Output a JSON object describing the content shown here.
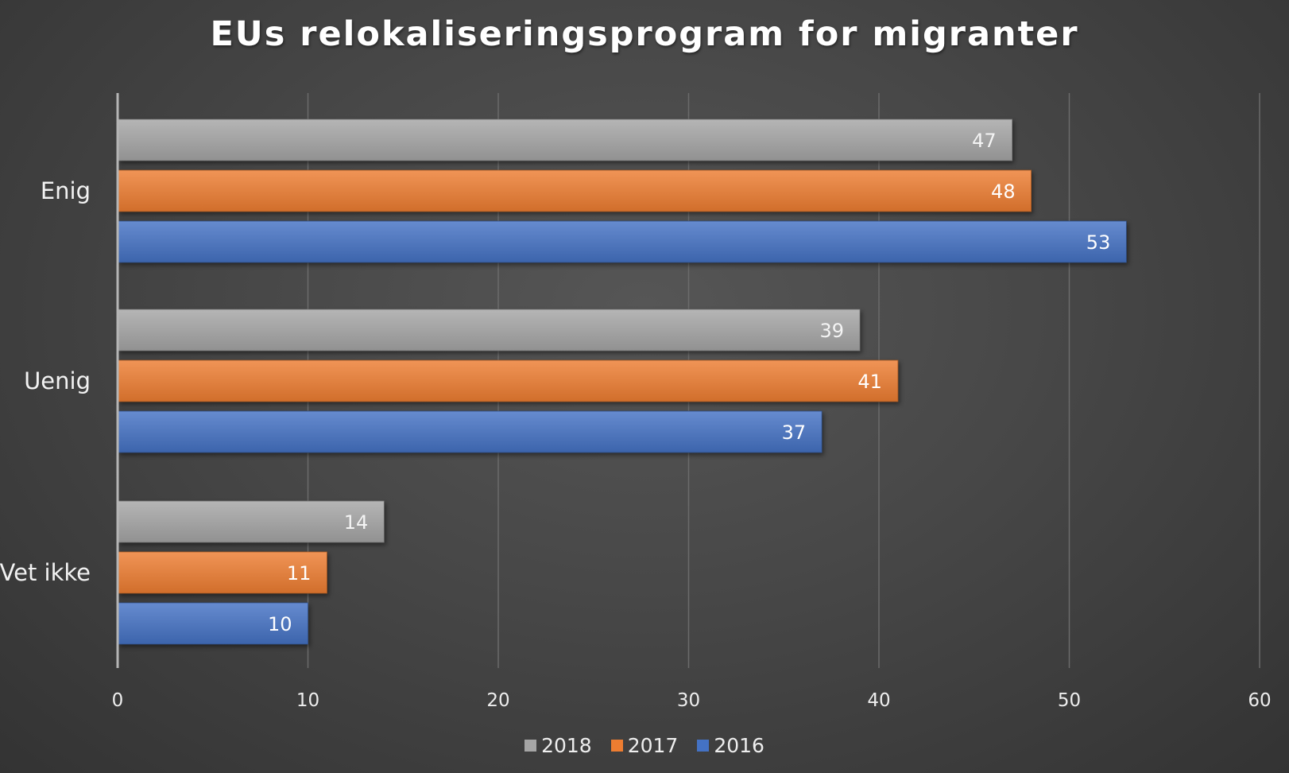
{
  "chart_data": {
    "type": "bar",
    "orientation": "horizontal",
    "title": "EUs relokaliseringsprogram for migranter",
    "categories": [
      "Enig",
      "Uenig",
      "Vet ikke"
    ],
    "series": [
      {
        "name": "2018",
        "values": [
          47,
          39,
          14
        ],
        "color": "#a5a5a5"
      },
      {
        "name": "2017",
        "values": [
          48,
          41,
          11
        ],
        "color": "#ed7d31"
      },
      {
        "name": "2016",
        "values": [
          53,
          37,
          10
        ],
        "color": "#4472c4"
      }
    ],
    "xlim": [
      0,
      60
    ],
    "xticks": [
      "0",
      "10",
      "20",
      "30",
      "40",
      "50",
      "60"
    ],
    "xlabel": "",
    "ylabel": "",
    "grid": true,
    "legend_position": "bottom"
  }
}
